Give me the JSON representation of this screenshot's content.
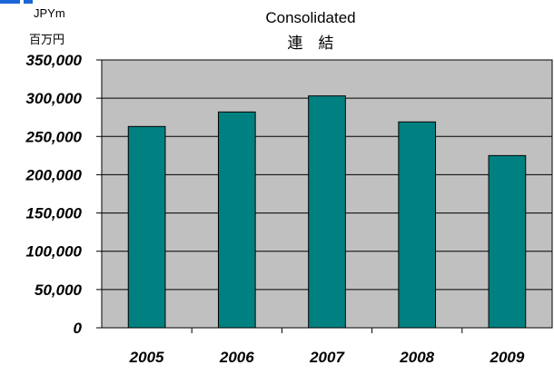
{
  "chart_data": {
    "type": "bar",
    "title": "Consolidated",
    "subtitle": "連　結",
    "unit_label": "JPYm",
    "unit_label_jp": "百万円",
    "categories": [
      "2005",
      "2006",
      "2007",
      "2008",
      "2009"
    ],
    "values": [
      263000,
      282000,
      303000,
      269000,
      225000
    ],
    "ylim": [
      0,
      350000
    ],
    "yticks": [
      "350,000",
      "300,000",
      "250,000",
      "200,000",
      "150,000",
      "100,000",
      "50,000",
      "0"
    ],
    "ytick_values": [
      350000,
      300000,
      250000,
      200000,
      150000,
      100000,
      50000,
      0
    ],
    "grid": true,
    "colors": {
      "bar": "#008080",
      "plot_background": "#c0c0c0",
      "gridline": "#000000",
      "corner_accent": "#1a66d6"
    }
  }
}
